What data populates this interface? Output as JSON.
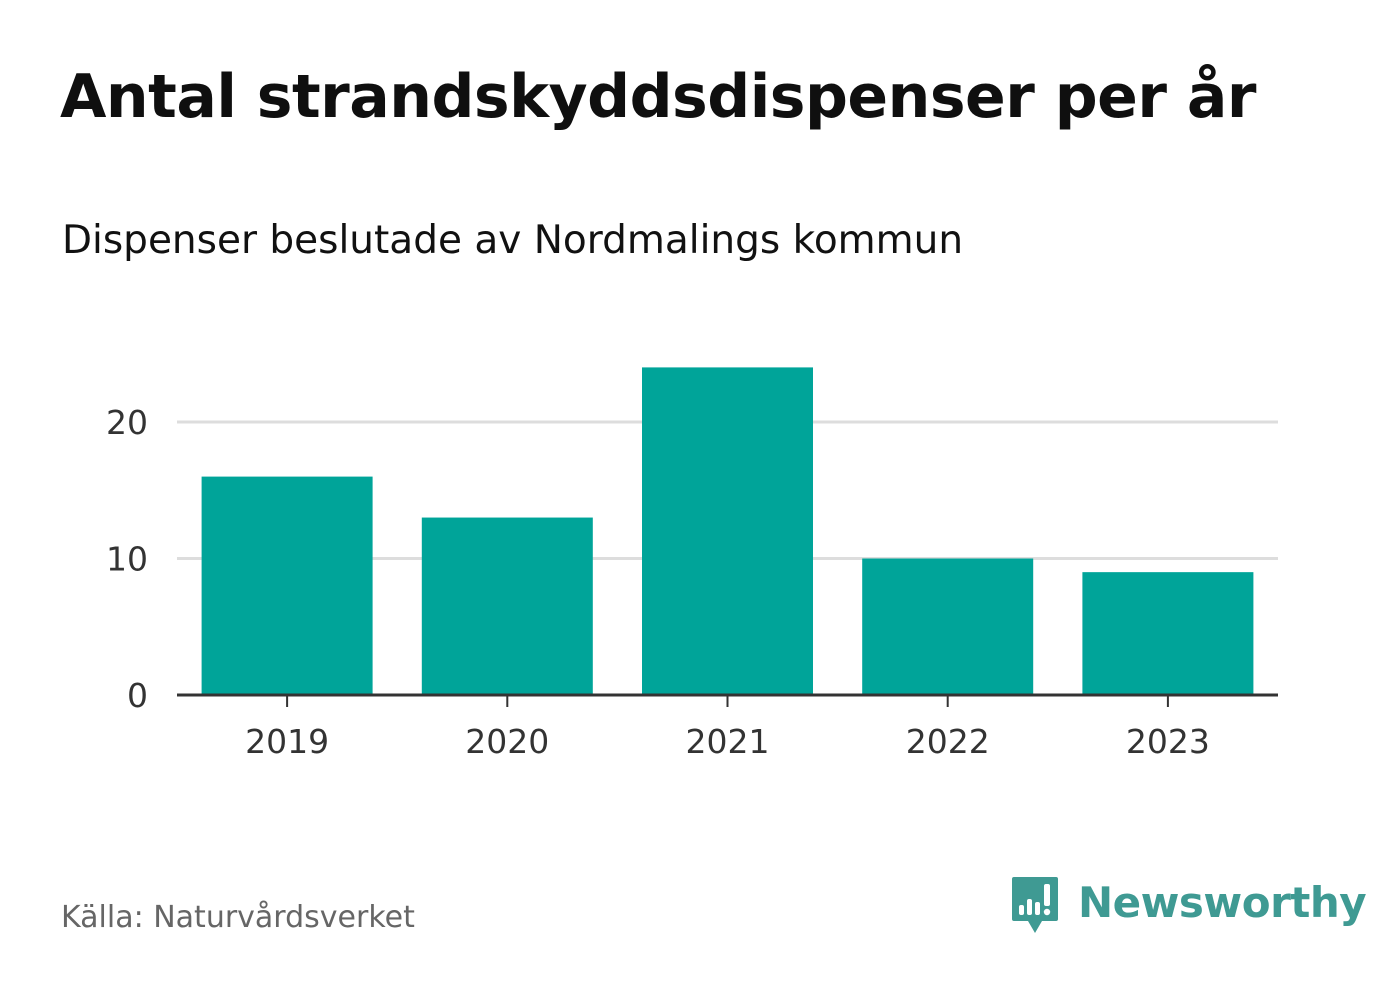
{
  "header": {
    "title": "Antal strandskyddsdispenser per år",
    "subtitle": "Dispenser beslutade av Nordmalings kommun"
  },
  "footer": {
    "source": "Källa: Naturvårdsverket",
    "brand": "Newsworthy"
  },
  "colors": {
    "bar": "#00a499",
    "gridline": "#dddddd",
    "axis": "#333333",
    "brand": "#3f9a93"
  },
  "chart_data": {
    "type": "bar",
    "title": "Antal strandskyddsdispenser per år",
    "subtitle": "Dispenser beslutade av Nordmalings kommun",
    "categories": [
      "2019",
      "2020",
      "2021",
      "2022",
      "2023"
    ],
    "values": [
      16,
      13,
      24,
      10,
      9
    ],
    "xlabel": "",
    "ylabel": "",
    "ylim": [
      0,
      26
    ],
    "yticks": [
      0,
      10,
      20
    ],
    "grid": true,
    "legend": "none"
  }
}
